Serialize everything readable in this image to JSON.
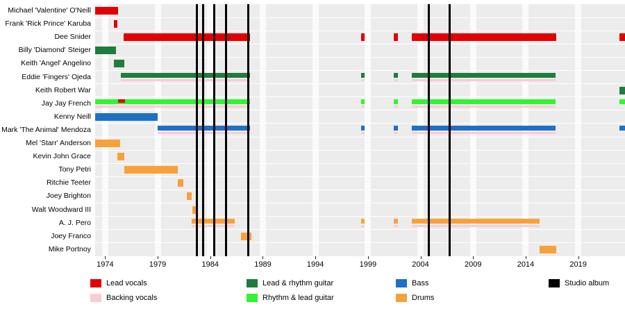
{
  "chart_data": {
    "type": "gantt",
    "title": "",
    "x_axis": {
      "start": 1973.05,
      "end": 2023.45,
      "ticks": [
        1974,
        1979,
        1984,
        1989,
        1994,
        1999,
        2004,
        2009,
        2014,
        2019
      ]
    },
    "colors": {
      "lead_vocals": "#e30000",
      "backing_vocals": "#f9ccd4",
      "lead_rhythm_guitar": "#1e7d3c",
      "rhythm_lead_guitar": "#33f333",
      "bass": "#1d70c6",
      "drums": "#f7a13b",
      "studio_album": "#000000"
    },
    "legend": [
      [
        {
          "label": "Lead vocals",
          "role": "lead_vocals"
        },
        {
          "label": "Backing vocals",
          "role": "backing_vocals"
        }
      ],
      [
        {
          "label": "Lead & rhythm guitar",
          "role": "lead_rhythm_guitar"
        },
        {
          "label": "Rhythm & lead guitar",
          "role": "rhythm_lead_guitar"
        }
      ],
      [
        {
          "label": "Bass",
          "role": "bass"
        },
        {
          "label": "Drums",
          "role": "drums"
        }
      ],
      [
        {
          "label": "Studio album",
          "role": "studio_album"
        }
      ]
    ],
    "albums": [
      1982.7,
      1983.3,
      1984.4,
      1985.5,
      1987.6,
      2004.8,
      2006.8
    ],
    "members": [
      {
        "name": "Michael 'Valentine' O'Neill",
        "segments": [
          {
            "role": "lead_vocals",
            "lane": "full",
            "start": 1973.05,
            "end": 1975.2
          }
        ]
      },
      {
        "name": "Frank 'Rick Prince' Karuba",
        "segments": [
          {
            "role": "lead_vocals",
            "lane": "full",
            "start": 1974.85,
            "end": 1975.15
          }
        ]
      },
      {
        "name": "Dee Snider",
        "segments": [
          {
            "role": "lead_vocals",
            "lane": "full",
            "start": 1975.75,
            "end": 1987.8
          },
          {
            "role": "lead_vocals",
            "lane": "full",
            "start": 1998.35,
            "end": 1998.7
          },
          {
            "role": "lead_vocals",
            "lane": "full",
            "start": 2001.45,
            "end": 2001.85
          },
          {
            "role": "lead_vocals",
            "lane": "full",
            "start": 2003.2,
            "end": 2016.9
          },
          {
            "role": "lead_vocals",
            "lane": "full",
            "start": 2022.95,
            "end": 2023.45
          }
        ]
      },
      {
        "name": "Billy 'Diamond' Steiger",
        "segments": [
          {
            "role": "lead_rhythm_guitar",
            "lane": "full",
            "start": 1973.05,
            "end": 1975.05
          }
        ]
      },
      {
        "name": "Keith 'Angel' Angelino",
        "segments": [
          {
            "role": "lead_rhythm_guitar",
            "lane": "full",
            "start": 1974.85,
            "end": 1975.8
          }
        ]
      },
      {
        "name": "Eddie 'Fingers' Ojeda",
        "segments": [
          {
            "role": "lead_rhythm_guitar",
            "lane": "main",
            "start": 1975.5,
            "end": 1987.8
          },
          {
            "role": "lead_rhythm_guitar",
            "lane": "main",
            "start": 1998.35,
            "end": 1998.7
          },
          {
            "role": "lead_rhythm_guitar",
            "lane": "main",
            "start": 2001.45,
            "end": 2001.85
          },
          {
            "role": "lead_rhythm_guitar",
            "lane": "main",
            "start": 2003.2,
            "end": 2016.85
          },
          {
            "role": "backing_vocals",
            "lane": "back",
            "start": 1975.5,
            "end": 1987.8
          },
          {
            "role": "backing_vocals",
            "lane": "back",
            "start": 1998.35,
            "end": 1998.7
          },
          {
            "role": "backing_vocals",
            "lane": "back",
            "start": 2001.45,
            "end": 2001.85
          },
          {
            "role": "backing_vocals",
            "lane": "back",
            "start": 2003.2,
            "end": 2016.85
          }
        ]
      },
      {
        "name": "Keith Robert War",
        "segments": [
          {
            "role": "lead_rhythm_guitar",
            "lane": "full",
            "start": 2022.95,
            "end": 2023.45
          }
        ]
      },
      {
        "name": "Jay Jay French",
        "segments": [
          {
            "role": "rhythm_lead_guitar",
            "lane": "main",
            "start": 1973.05,
            "end": 1987.8
          },
          {
            "role": "rhythm_lead_guitar",
            "lane": "main",
            "start": 1998.35,
            "end": 1998.7
          },
          {
            "role": "rhythm_lead_guitar",
            "lane": "main",
            "start": 2001.45,
            "end": 2001.85
          },
          {
            "role": "rhythm_lead_guitar",
            "lane": "main",
            "start": 2003.2,
            "end": 2016.85
          },
          {
            "role": "rhythm_lead_guitar",
            "lane": "main",
            "start": 2022.95,
            "end": 2023.45
          },
          {
            "role": "backing_vocals",
            "lane": "back",
            "start": 1973.05,
            "end": 1987.8
          },
          {
            "role": "backing_vocals",
            "lane": "back",
            "start": 1998.35,
            "end": 1998.7
          },
          {
            "role": "backing_vocals",
            "lane": "back",
            "start": 2001.45,
            "end": 2001.85
          },
          {
            "role": "backing_vocals",
            "lane": "back",
            "start": 2003.2,
            "end": 2016.85
          },
          {
            "role": "lead_vocals",
            "lane": "overlay",
            "start": 1975.25,
            "end": 1975.9
          }
        ]
      },
      {
        "name": "Kenny Neill",
        "segments": [
          {
            "role": "bass",
            "lane": "full",
            "start": 1973.05,
            "end": 1979.0
          }
        ]
      },
      {
        "name": "Mark 'The Animal' Mendoza",
        "segments": [
          {
            "role": "bass",
            "lane": "main",
            "start": 1979.0,
            "end": 1987.8
          },
          {
            "role": "bass",
            "lane": "main",
            "start": 1998.35,
            "end": 1998.7
          },
          {
            "role": "bass",
            "lane": "main",
            "start": 2001.45,
            "end": 2001.85
          },
          {
            "role": "bass",
            "lane": "main",
            "start": 2003.2,
            "end": 2016.85
          },
          {
            "role": "bass",
            "lane": "main",
            "start": 2022.95,
            "end": 2023.45
          },
          {
            "role": "backing_vocals",
            "lane": "back",
            "start": 1979.0,
            "end": 1987.8
          },
          {
            "role": "backing_vocals",
            "lane": "back",
            "start": 1998.35,
            "end": 1998.7
          },
          {
            "role": "backing_vocals",
            "lane": "back",
            "start": 2001.45,
            "end": 2001.85
          },
          {
            "role": "backing_vocals",
            "lane": "back",
            "start": 2003.2,
            "end": 2016.85
          }
        ]
      },
      {
        "name": "Mel 'Starr' Anderson",
        "segments": [
          {
            "role": "drums",
            "lane": "full",
            "start": 1973.05,
            "end": 1975.45
          }
        ]
      },
      {
        "name": "Kevin John Grace",
        "segments": [
          {
            "role": "drums",
            "lane": "full",
            "start": 1975.15,
            "end": 1975.85
          }
        ]
      },
      {
        "name": "Tony Petri",
        "segments": [
          {
            "role": "drums",
            "lane": "full",
            "start": 1975.85,
            "end": 1980.9
          }
        ]
      },
      {
        "name": "Ritchie Teeter",
        "segments": [
          {
            "role": "drums",
            "lane": "full",
            "start": 1980.9,
            "end": 1981.45
          }
        ]
      },
      {
        "name": "Joey Brighton",
        "segments": [
          {
            "role": "drums",
            "lane": "full",
            "start": 1981.75,
            "end": 1982.2
          }
        ]
      },
      {
        "name": "Walt Woodward III",
        "segments": [
          {
            "role": "drums",
            "lane": "full",
            "start": 1982.3,
            "end": 1982.6
          }
        ]
      },
      {
        "name": "A. J. Pero",
        "segments": [
          {
            "role": "drums",
            "lane": "main",
            "start": 1982.2,
            "end": 1986.3
          },
          {
            "role": "drums",
            "lane": "main",
            "start": 1998.35,
            "end": 1998.7
          },
          {
            "role": "drums",
            "lane": "main",
            "start": 2001.45,
            "end": 2001.85
          },
          {
            "role": "drums",
            "lane": "main",
            "start": 2003.2,
            "end": 2015.3
          },
          {
            "role": "backing_vocals",
            "lane": "back",
            "start": 1982.2,
            "end": 1986.3
          },
          {
            "role": "backing_vocals",
            "lane": "back",
            "start": 1998.35,
            "end": 1998.7
          },
          {
            "role": "backing_vocals",
            "lane": "back",
            "start": 2001.45,
            "end": 2001.85
          },
          {
            "role": "backing_vocals",
            "lane": "back",
            "start": 2003.2,
            "end": 2015.3
          }
        ]
      },
      {
        "name": "Joey Franco",
        "segments": [
          {
            "role": "drums",
            "lane": "full",
            "start": 1986.95,
            "end": 1987.9
          }
        ]
      },
      {
        "name": "Mike Portnoy",
        "segments": [
          {
            "role": "drums",
            "lane": "full",
            "start": 2015.3,
            "end": 2016.9
          }
        ]
      }
    ]
  }
}
